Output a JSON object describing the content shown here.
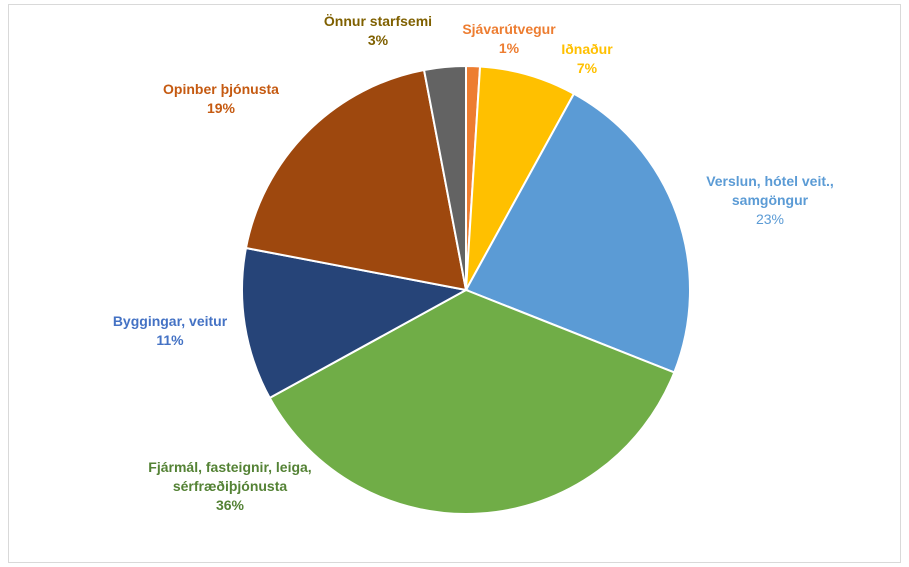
{
  "chart_data": {
    "type": "pie",
    "categories": [
      "Sjávarútvegur",
      "Iðnaður",
      "Verslun, hótel veit., samgöngur",
      "Fjármál, fasteignir, leiga, sérfræðiþjónusta",
      "Byggingar, veitur",
      "Opinber þjónusta",
      "Önnur starfsemi"
    ],
    "values": [
      1,
      7,
      23,
      36,
      11,
      19,
      3
    ],
    "value_labels": [
      "1%",
      "7%",
      "23%",
      "36%",
      "11%",
      "19%",
      "3%"
    ],
    "colors": [
      "#ed7d31",
      "#ffc000",
      "#5b9bd5",
      "#70ad47",
      "#264478",
      "#9e480e",
      "#636363"
    ],
    "label_colors": [
      "#ed7d31",
      "#ffc000",
      "#5b9bd5",
      "#548235",
      "#4472c4",
      "#c55a11",
      "#7f6000"
    ]
  }
}
